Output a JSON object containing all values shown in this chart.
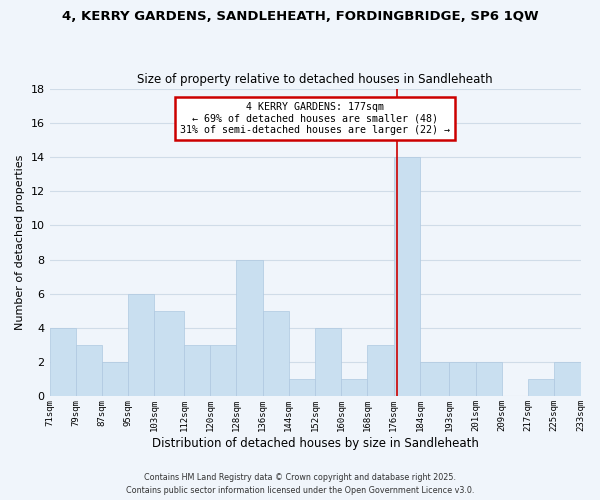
{
  "title1": "4, KERRY GARDENS, SANDLEHEATH, FORDINGBRIDGE, SP6 1QW",
  "title2": "Size of property relative to detached houses in Sandleheath",
  "xlabel": "Distribution of detached houses by size in Sandleheath",
  "ylabel": "Number of detached properties",
  "bin_edges": [
    71,
    79,
    87,
    95,
    103,
    112,
    120,
    128,
    136,
    144,
    152,
    160,
    168,
    176,
    184,
    193,
    201,
    209,
    217,
    225,
    233
  ],
  "bar_heights": [
    4,
    3,
    2,
    6,
    5,
    3,
    3,
    8,
    5,
    1,
    4,
    1,
    3,
    14,
    2,
    2,
    2,
    0,
    1,
    2
  ],
  "bar_color": "#c9dff0",
  "bar_edge_color": "#aec8e0",
  "bg_color": "#f0f5fb",
  "grid_color": "#d0dce8",
  "red_line_x": 177,
  "annotation_title": "4 KERRY GARDENS: 177sqm",
  "annotation_line1": "← 69% of detached houses are smaller (48)",
  "annotation_line2": "31% of semi-detached houses are larger (22) →",
  "annotation_box_color": "#ffffff",
  "annotation_box_edge": "#cc0000",
  "red_line_color": "#cc0000",
  "footnote1": "Contains HM Land Registry data © Crown copyright and database right 2025.",
  "footnote2": "Contains public sector information licensed under the Open Government Licence v3.0.",
  "ylim": [
    0,
    18
  ],
  "yticks": [
    0,
    2,
    4,
    6,
    8,
    10,
    12,
    14,
    16,
    18
  ],
  "tick_labels": [
    "71sqm",
    "79sqm",
    "87sqm",
    "95sqm",
    "103sqm",
    "112sqm",
    "120sqm",
    "128sqm",
    "136sqm",
    "144sqm",
    "152sqm",
    "160sqm",
    "168sqm",
    "176sqm",
    "184sqm",
    "193sqm",
    "201sqm",
    "209sqm",
    "217sqm",
    "225sqm",
    "233sqm"
  ]
}
